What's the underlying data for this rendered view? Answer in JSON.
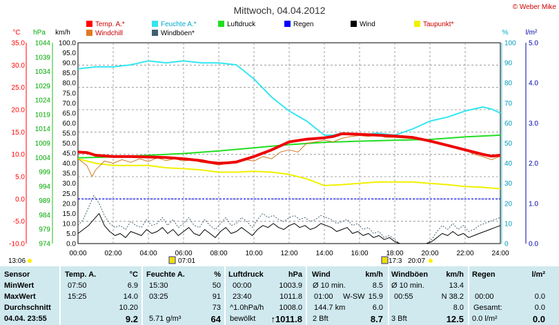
{
  "chart_data": {
    "type": "line",
    "title": "Mittwoch, 04.04.2012",
    "copyright": "© Weber Mike",
    "x_ticks": [
      "00:00",
      "02:00",
      "04:00",
      "06:00",
      "08:00",
      "10:00",
      "12:00",
      "14:00",
      "16:00",
      "18:00",
      "20:00",
      "22:00",
      "24:00"
    ],
    "axes": {
      "temp": {
        "label": "°C",
        "min": -10,
        "max": 35,
        "ticks": [
          "35.0",
          "30.0",
          "25.0",
          "20.0",
          "15.0",
          "10.0",
          "5.0",
          "0.0",
          "-5.0",
          "-10.0"
        ]
      },
      "pressure": {
        "label": "hPa",
        "min": 974,
        "max": 1044,
        "ticks": [
          "1044",
          "1039",
          "1034",
          "1029",
          "1024",
          "1019",
          "1014",
          "1009",
          "1004",
          "999",
          "994",
          "989",
          "984",
          "979",
          "974"
        ]
      },
      "wind": {
        "label": "km/h",
        "min": 0,
        "max": 100,
        "ticks": [
          "100.0",
          "95.0",
          "90.0",
          "85.0",
          "80.0",
          "75.0",
          "70.0",
          "65.0",
          "60.0",
          "55.0",
          "50.0",
          "45.0",
          "40.0",
          "35.0",
          "30.0",
          "25.0",
          "20.0",
          "15.0",
          "10.0",
          "5.0",
          "0.0"
        ]
      },
      "humidity": {
        "label": "%",
        "min": 0,
        "max": 100,
        "ticks": [
          "100",
          "90",
          "80",
          "70",
          "60",
          "50",
          "40",
          "30",
          "20",
          "10",
          "0"
        ]
      },
      "rain": {
        "label": "l/m²",
        "min": 0,
        "max": 5,
        "ticks": [
          "5.0",
          "4.0",
          "3.0",
          "2.0",
          "1.0",
          "0.0"
        ]
      }
    },
    "legend": [
      {
        "name": "Temp. A.*",
        "color": "#ff0000"
      },
      {
        "name": "Feuchte A.*",
        "color": "#33e6f0"
      },
      {
        "name": "Luftdruck",
        "color": "#22dd22"
      },
      {
        "name": "Regen",
        "color": "#0000ff"
      },
      {
        "name": "Wind",
        "color": "#000000"
      },
      {
        "name": "Taupunkt*",
        "color": "#f0f000"
      },
      {
        "name": "Windchill",
        "color": "#e07a20"
      },
      {
        "name": "Windböen*",
        "color": "#406070"
      }
    ],
    "series": [
      {
        "name": "Temp. A.*",
        "axis": "temp",
        "x": [
          0,
          0.5,
          1,
          2,
          3,
          4,
          5,
          6,
          7,
          7.5,
          8,
          8.5,
          9,
          10,
          11,
          12,
          13,
          14,
          14.5,
          15,
          16,
          17,
          18,
          19,
          20,
          21,
          22,
          23,
          23.5,
          24
        ],
        "y": [
          10.5,
          10.4,
          9.8,
          9.5,
          9.5,
          9.4,
          9.3,
          9.0,
          8.6,
          8.2,
          8.0,
          8.1,
          8.3,
          9.5,
          11.0,
          12.8,
          13.4,
          13.7,
          14.0,
          14.6,
          14.5,
          14.3,
          14.1,
          13.8,
          13.0,
          12.0,
          11.0,
          10.0,
          9.6,
          9.8
        ]
      },
      {
        "name": "Feuchte A.*",
        "axis": "humidity",
        "x": [
          0,
          1,
          2,
          3,
          4,
          5,
          6,
          7,
          8,
          9,
          10,
          11,
          12,
          13,
          14,
          14.5,
          15,
          16,
          17,
          18,
          19,
          20,
          21,
          22,
          22.5,
          23,
          23.5,
          24
        ],
        "y": [
          87,
          88,
          88,
          89,
          91,
          90,
          91,
          90,
          90,
          89,
          82,
          73,
          66,
          61,
          54,
          54,
          55,
          54,
          55,
          54,
          57,
          61,
          63,
          66,
          67,
          68,
          67,
          65
        ]
      },
      {
        "name": "Luftdruck",
        "axis": "pressure",
        "x": [
          0,
          2,
          4,
          6,
          8,
          10,
          12,
          14,
          16,
          18,
          20,
          22,
          24
        ],
        "y": [
          1003.9,
          1004.2,
          1004.8,
          1005.4,
          1006.3,
          1007.4,
          1008.5,
          1009.3,
          1009.7,
          1010.0,
          1010.3,
          1011.2,
          1011.8
        ]
      },
      {
        "name": "Taupunkt*",
        "axis": "temp",
        "x": [
          0,
          1,
          2,
          3,
          4,
          5,
          6,
          7,
          8,
          9,
          10,
          11,
          12,
          13,
          14,
          15,
          16,
          17,
          18,
          19,
          20,
          21,
          22,
          23,
          24
        ],
        "y": [
          9.0,
          8.0,
          7.5,
          7.5,
          7.5,
          7.0,
          6.8,
          6.5,
          6.0,
          6.0,
          6.2,
          6.0,
          5.5,
          4.5,
          3.0,
          3.2,
          3.5,
          3.8,
          3.8,
          3.8,
          3.5,
          3.2,
          2.8,
          2.6,
          2.3
        ]
      },
      {
        "name": "Windchill",
        "axis": "temp",
        "x": [
          0,
          0.5,
          0.8,
          1,
          1.5,
          2,
          2.5,
          3,
          3.5,
          4,
          4.5,
          5,
          5.5,
          6,
          6.5,
          7,
          7.5,
          8,
          8.5,
          9,
          9.5,
          10,
          10.5,
          11,
          11.5,
          12,
          12.5,
          13,
          13.5,
          14,
          14.5,
          15,
          15.5,
          16,
          16.5,
          17,
          17.5,
          18,
          19,
          20,
          21,
          22,
          22.5,
          23,
          23.5,
          24
        ],
        "y": [
          9.0,
          7.5,
          5.0,
          6.5,
          8.5,
          8.0,
          8.8,
          8.2,
          9.0,
          8.4,
          9.2,
          8.6,
          9.0,
          8.5,
          8.8,
          8.2,
          8.0,
          7.6,
          8.0,
          8.3,
          8.8,
          8.5,
          9.5,
          9.0,
          10.5,
          11.0,
          10.5,
          12.5,
          12.8,
          13.2,
          12.8,
          13.6,
          14.0,
          14.2,
          14.0,
          14.3,
          13.8,
          13.8,
          13.5,
          13.0,
          12.0,
          11.0,
          10.0,
          9.5,
          8.8,
          9.6
        ]
      },
      {
        "name": "Wind",
        "axis": "wind",
        "x": [
          0,
          0.3,
          0.6,
          0.9,
          1.2,
          1.5,
          1.8,
          2.1,
          2.4,
          2.7,
          3,
          3.3,
          3.6,
          3.9,
          4.2,
          4.5,
          4.8,
          5.1,
          5.4,
          5.7,
          6,
          6.3,
          6.6,
          6.9,
          7.2,
          7.5,
          7.8,
          8.1,
          8.4,
          8.7,
          9,
          9.3,
          9.6,
          9.9,
          10.2,
          10.5,
          10.8,
          11.1,
          11.4,
          11.7,
          12,
          12.3,
          12.6,
          12.9,
          13.2,
          13.5,
          13.8,
          14.1,
          14.4,
          14.7,
          15,
          15.3,
          15.6,
          15.9,
          16.2,
          16.5,
          16.8,
          17.1,
          17.4,
          17.7,
          18,
          18.3,
          18.6,
          18.9,
          19.2,
          19.5,
          19.8,
          20.1,
          20.4,
          20.7,
          21,
          21.3,
          21.6,
          21.9,
          22.2,
          22.5,
          22.8,
          23.1,
          23.4,
          23.7,
          24
        ],
        "y": [
          5,
          7,
          9,
          12,
          15,
          9,
          6,
          4,
          5,
          3,
          6,
          5,
          4,
          7,
          5,
          6,
          8,
          5,
          7,
          4,
          6,
          8,
          5,
          4,
          7,
          5,
          3,
          6,
          8,
          5,
          6,
          8,
          6,
          4,
          7,
          9,
          8,
          10,
          8,
          7,
          9,
          10,
          8,
          9,
          7,
          8,
          10,
          9,
          8,
          6,
          7,
          8,
          5,
          6,
          4,
          5,
          3,
          4,
          2,
          3,
          1,
          0,
          0,
          0,
          0,
          0,
          0,
          1,
          3,
          5,
          4,
          6,
          4,
          5,
          3,
          4,
          5,
          6,
          7,
          8,
          9
        ]
      },
      {
        "name": "Windböen*",
        "axis": "wind",
        "x": [
          0,
          0.3,
          0.6,
          0.9,
          1.2,
          1.5,
          1.8,
          2.1,
          2.4,
          2.7,
          3,
          3.3,
          3.6,
          3.9,
          4.2,
          4.5,
          4.8,
          5.1,
          5.4,
          5.7,
          6,
          6.3,
          6.6,
          6.9,
          7.2,
          7.5,
          7.8,
          8.1,
          8.4,
          8.7,
          9,
          9.3,
          9.6,
          9.9,
          10.2,
          10.5,
          10.8,
          11.1,
          11.4,
          11.7,
          12,
          12.3,
          12.6,
          12.9,
          13.2,
          13.5,
          13.8,
          14.1,
          14.4,
          14.7,
          15,
          15.3,
          15.6,
          15.9,
          16.2,
          16.5,
          16.8,
          17.1,
          17.4,
          17.7,
          18,
          18.3,
          18.6,
          18.9,
          19.2,
          19.5,
          19.8,
          20.1,
          20.4,
          20.7,
          21,
          21.3,
          21.6,
          21.9,
          22.2,
          22.5,
          22.8,
          23.1,
          23.4,
          23.7,
          24
        ],
        "y": [
          9,
          12,
          18,
          24,
          20,
          14,
          10,
          8,
          9,
          7,
          11,
          9,
          8,
          12,
          9,
          10,
          13,
          9,
          12,
          8,
          10,
          13,
          9,
          8,
          12,
          9,
          7,
          10,
          13,
          9,
          10,
          13,
          11,
          8,
          12,
          15,
          13,
          14,
          12,
          11,
          13,
          14,
          12,
          13,
          11,
          12,
          14,
          13,
          12,
          10,
          11,
          12,
          9,
          10,
          7,
          8,
          5,
          6,
          3,
          4,
          2,
          0,
          0,
          0,
          0,
          0,
          0,
          2,
          6,
          9,
          7,
          10,
          7,
          9,
          6,
          7,
          9,
          10,
          11,
          12,
          13
        ]
      }
    ],
    "hlines": [
      {
        "axis": "temp",
        "value": 0.0,
        "color": "#0000ff"
      }
    ],
    "markers": {
      "left_time": "13:06",
      "sunrise": "07:01",
      "sunset_a": "17:3",
      "sunset_b": "20:07"
    }
  },
  "stats": {
    "sensor": {
      "header": "Sensor",
      "min": "MinWert",
      "max": "MaxWert",
      "avg": "Durchschnitt",
      "now": "04.04. 23:55"
    },
    "temp": {
      "header": "Temp. A.",
      "unit": "°C",
      "min_t": "07:50",
      "min_v": "6.9",
      "max_t": "15:25",
      "max_v": "14.0",
      "avg_v": "10.20",
      "now_v": "9.2"
    },
    "hum": {
      "header": "Feuchte A.",
      "unit": "%",
      "min_t": "15:30",
      "min_v": "50",
      "max_t": "03:25",
      "max_v": "91",
      "avg_v": "73",
      "now_l": "5.71 g/m³",
      "now_v": "64"
    },
    "press": {
      "header": "Luftdruck",
      "unit": "hPa",
      "min_t": "00:00",
      "min_v": "1003.9",
      "max_t": "23:40",
      "max_v": "1011.8",
      "avg_l": "^1.0hPa/h",
      "avg_v": "1008.0",
      "now_l": "bewölkt",
      "now_v": "↑1011.8"
    },
    "wind": {
      "header": "Wind",
      "unit": "km/h",
      "r1_l": "Ø 10 min.",
      "r1_v": "8.5",
      "r2_l": "01:00",
      "r2_m": "W-SW",
      "r2_v": "15.9",
      "r3_l": "144.7 km",
      "r3_v": "6.0",
      "now_l": "2 Bft",
      "now_v": "8.7"
    },
    "gust": {
      "header": "Windböen",
      "unit": "km/h",
      "r1_l": "Ø 10 min.",
      "r1_v": "13.4",
      "r2_l": "00:55",
      "r2_v": "N 38.2",
      "r3_v": "8.0",
      "now_l": "3 Bft",
      "now_v": "12.5"
    },
    "rain": {
      "header": "Regen",
      "unit": "l/m²",
      "r2_l": "00:00",
      "r2_v": "0.0",
      "r3_l": "Gesamt:",
      "r3_v": "0.0",
      "now_l": "0.0 l/m²",
      "now_v": "0.0"
    }
  }
}
